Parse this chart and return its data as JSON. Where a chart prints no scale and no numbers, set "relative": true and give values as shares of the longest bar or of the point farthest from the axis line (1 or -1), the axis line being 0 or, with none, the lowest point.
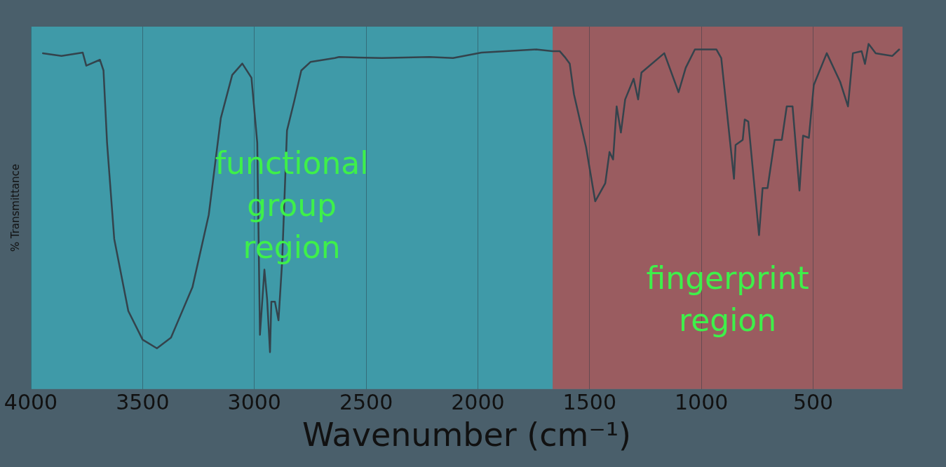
{
  "chart_data": {
    "type": "line",
    "relative": true,
    "xlabel": "Wavenumber (cm⁻¹)",
    "ylabel": "% Transmittance",
    "xlim": [
      4000,
      100
    ],
    "xticks": [
      4000,
      3500,
      3000,
      2500,
      2000,
      1500,
      1000,
      500
    ],
    "grid": "x",
    "marker": "none",
    "line_style": "solid",
    "bands": [
      {
        "axis": "x",
        "from": 4000,
        "to": 1665,
        "label": "functional group region",
        "color": "#3f9aa8"
      },
      {
        "axis": "x",
        "from": 1665,
        "to": 100,
        "label": "fingerprint region",
        "color": "#9a5c60"
      }
    ],
    "series": [
      {
        "color": "#34434c",
        "x": [
          3946,
          3863,
          3768,
          3752,
          3691,
          3675,
          3659,
          3627,
          3564,
          3500,
          3436,
          3373,
          3277,
          3204,
          3150,
          3099,
          3054,
          3013,
          2987,
          2975,
          2955,
          2943,
          2930,
          2924,
          2908,
          2892,
          2876,
          2854,
          2822,
          2790,
          2748,
          2640,
          2621,
          2430,
          2217,
          2111,
          1984,
          1739,
          1666,
          1634,
          1611,
          1589,
          1570,
          1516,
          1475,
          1430,
          1411,
          1395,
          1379,
          1360,
          1341,
          1303,
          1283,
          1268,
          1166,
          1102,
          1070,
          1029,
          933,
          911,
          854,
          847,
          815,
          806,
          790,
          742,
          726,
          704,
          672,
          640,
          618,
          592,
          561,
          545,
          519,
          497,
          439,
          379,
          344,
          322,
          283,
          268,
          252,
          220,
          146,
          115
        ],
        "values": [
          0.973,
          0.965,
          0.975,
          0.937,
          0.954,
          0.923,
          0.713,
          0.435,
          0.226,
          0.143,
          0.118,
          0.149,
          0.295,
          0.505,
          0.785,
          0.91,
          0.943,
          0.902,
          0.713,
          0.157,
          0.346,
          0.261,
          0.107,
          0.253,
          0.253,
          0.199,
          0.366,
          0.749,
          0.833,
          0.923,
          0.948,
          0.959,
          0.962,
          0.959,
          0.962,
          0.959,
          0.975,
          0.984,
          0.979,
          0.979,
          0.962,
          0.943,
          0.854,
          0.701,
          0.544,
          0.596,
          0.687,
          0.665,
          0.819,
          0.743,
          0.839,
          0.899,
          0.839,
          0.917,
          0.973,
          0.86,
          0.931,
          0.984,
          0.984,
          0.959,
          0.609,
          0.707,
          0.722,
          0.781,
          0.775,
          0.446,
          0.582,
          0.582,
          0.722,
          0.722,
          0.819,
          0.819,
          0.575,
          0.734,
          0.728,
          0.881,
          0.973,
          0.89,
          0.819,
          0.973,
          0.979,
          0.942,
          1,
          0.973,
          0.965,
          0.984
        ]
      }
    ]
  }
}
